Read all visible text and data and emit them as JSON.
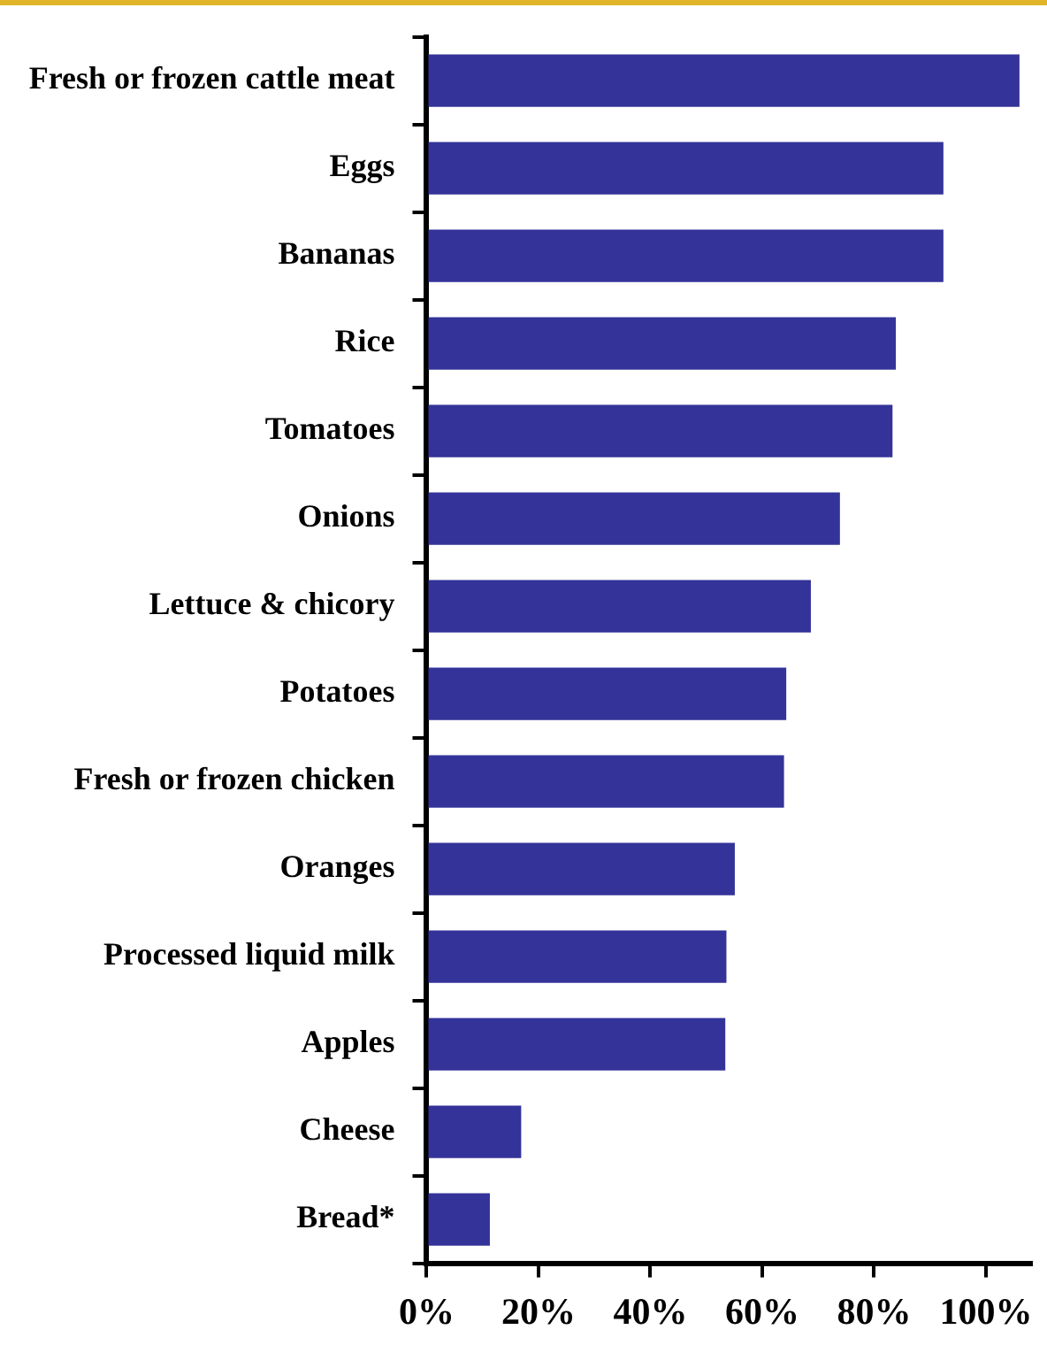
{
  "chart_data": {
    "type": "bar",
    "orientation": "horizontal",
    "categories": [
      "Fresh or frozen cattle meat",
      "Eggs",
      "Bananas",
      "Rice",
      "Tomatoes",
      "Onions",
      "Lettuce & chicory",
      "Potatoes",
      "Fresh or frozen chicken",
      "Oranges",
      "Processed liquid milk",
      "Apples",
      "Cheese",
      "Bread*"
    ],
    "values": [
      106,
      92.4,
      92.4,
      83.9,
      83.3,
      73.9,
      68.7,
      64.3,
      63.9,
      55.1,
      53.6,
      53.4,
      16.9,
      11.3
    ],
    "color": "#333399",
    "xlim": [
      0,
      108
    ],
    "xticks": [
      {
        "value": 0,
        "label": "0%"
      },
      {
        "value": 20,
        "label": "20%"
      },
      {
        "value": 40,
        "label": "40%"
      },
      {
        "value": 60,
        "label": "60%"
      },
      {
        "value": 80,
        "label": "80%"
      },
      {
        "value": 100,
        "label": "100%"
      }
    ],
    "grid": false,
    "legend": false
  }
}
